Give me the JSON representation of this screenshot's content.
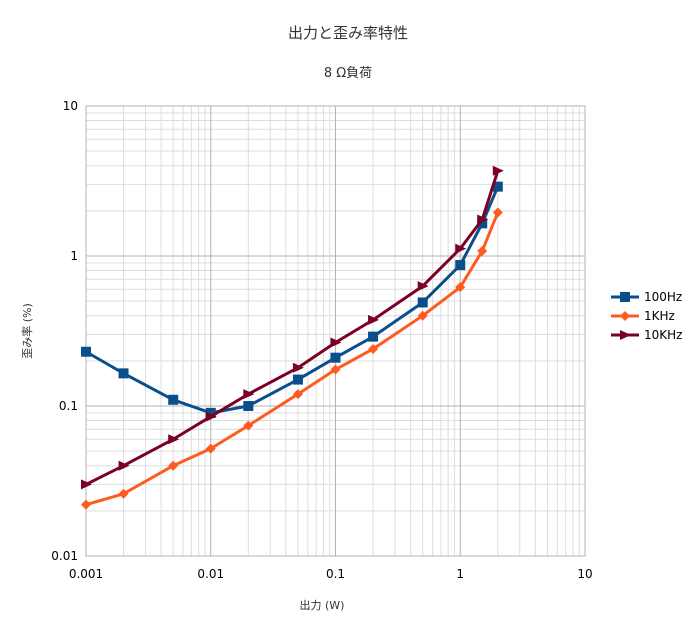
{
  "chart_data": {
    "type": "line",
    "title": "出力と歪み率特性",
    "subtitle": "8 Ω負荷",
    "xlabel": "出力 (W)",
    "ylabel": "歪み率 (%)",
    "x_scale": "log",
    "y_scale": "log",
    "xlim": [
      0.001,
      10
    ],
    "ylim": [
      0.01,
      10
    ],
    "x_ticks": [
      "0.001",
      "0.01",
      "0.1",
      "1",
      "10"
    ],
    "y_ticks": [
      "0.01",
      "0.1",
      "1",
      "10"
    ],
    "grid": true,
    "legend_position": "right",
    "series": [
      {
        "name": "100Hz",
        "color": "#0b4f8a",
        "marker": "square",
        "x": [
          0.001,
          0.002,
          0.005,
          0.01,
          0.02,
          0.05,
          0.1,
          0.2,
          0.5,
          1,
          1.5,
          2
        ],
        "y": [
          0.23,
          0.165,
          0.11,
          0.09,
          0.1,
          0.15,
          0.21,
          0.29,
          0.49,
          0.87,
          1.65,
          2.9
        ]
      },
      {
        "name": "1KHz",
        "color": "#ff5a1f",
        "marker": "diamond",
        "x": [
          0.001,
          0.002,
          0.005,
          0.01,
          0.02,
          0.05,
          0.1,
          0.2,
          0.5,
          1,
          1.5,
          2
        ],
        "y": [
          0.022,
          0.026,
          0.04,
          0.052,
          0.074,
          0.12,
          0.175,
          0.24,
          0.4,
          0.62,
          1.08,
          1.95
        ]
      },
      {
        "name": "10KHz",
        "color": "#7b0026",
        "marker": "triangle-right",
        "x": [
          0.001,
          0.002,
          0.005,
          0.01,
          0.02,
          0.05,
          0.1,
          0.2,
          0.5,
          1,
          1.5,
          2
        ],
        "y": [
          0.03,
          0.04,
          0.06,
          0.085,
          0.12,
          0.18,
          0.265,
          0.375,
          0.63,
          1.12,
          1.75,
          3.7
        ]
      }
    ]
  }
}
